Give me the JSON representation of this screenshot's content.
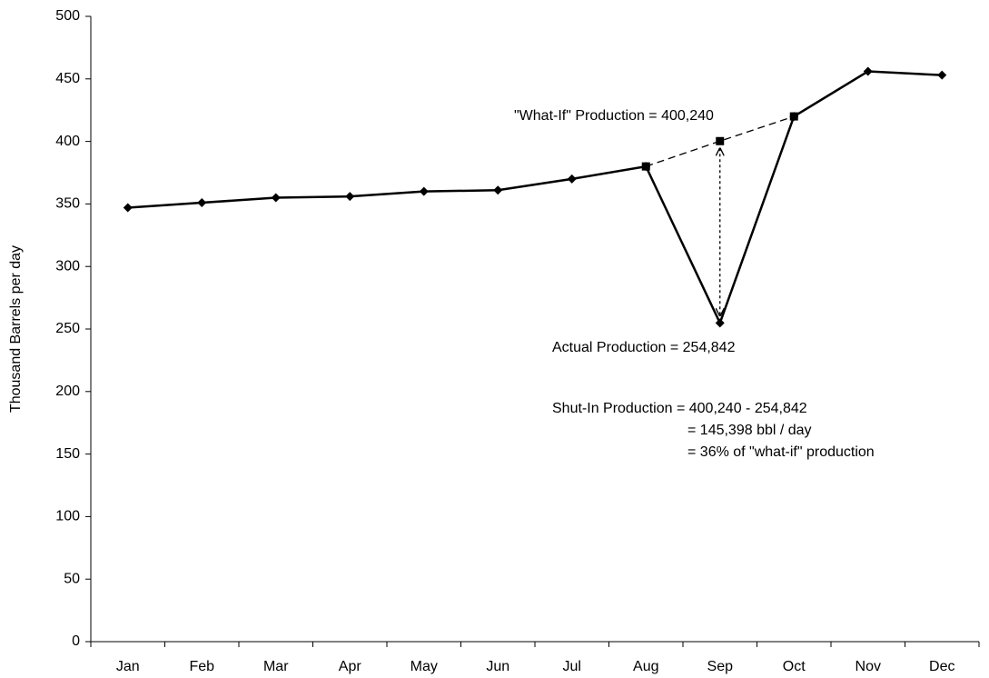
{
  "chart_data": {
    "type": "line",
    "y_label": "Thousand Barrels per day",
    "categories": [
      "Jan",
      "Feb",
      "Mar",
      "Apr",
      "May",
      "Jun",
      "Jul",
      "Aug",
      "Sep",
      "Oct",
      "Nov",
      "Dec"
    ],
    "series": [
      {
        "color": "#000000",
        "line_style": "solid",
        "marker": "diamond",
        "values": [
          347,
          351,
          355,
          356,
          360,
          361,
          370,
          380,
          254.842,
          420,
          456,
          453
        ]
      },
      {
        "color": "#000000",
        "line_style": "dashed",
        "marker": "square",
        "values": [
          null,
          null,
          null,
          null,
          null,
          null,
          null,
          380,
          400.24,
          420,
          null,
          null
        ]
      }
    ],
    "ylim": [
      0,
      500
    ],
    "yticks": [
      0,
      50,
      100,
      150,
      200,
      250,
      300,
      350,
      400,
      450,
      500
    ],
    "grid": false,
    "annotations": [
      "\"What-If\" Production = 400,240",
      "Actual Production = 254,842",
      "Shut-In Production = 400,240 - 254,842",
      "= 145,398  bbl / day",
      "= 36% of \"what-if\" production"
    ]
  }
}
